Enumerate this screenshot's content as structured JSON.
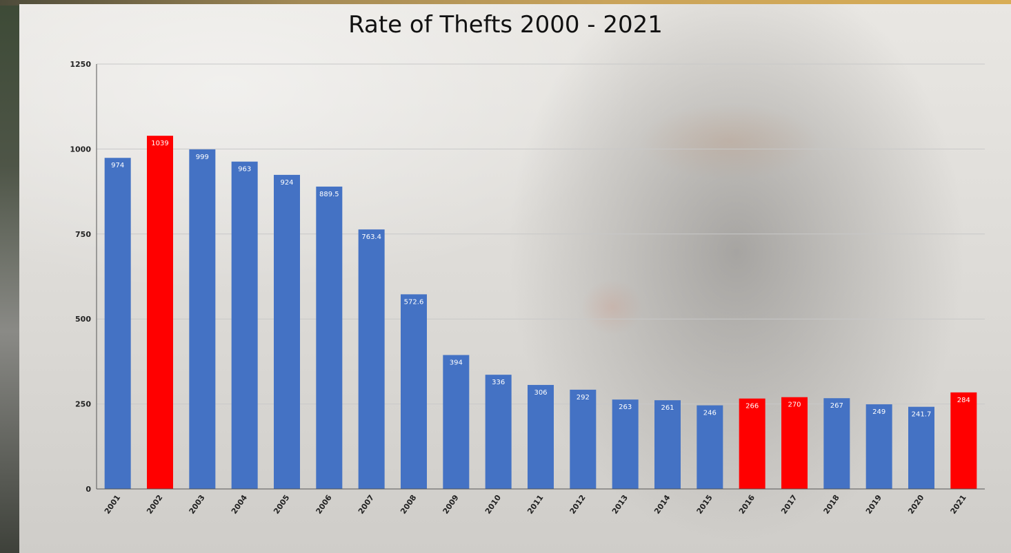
{
  "chart_data": {
    "type": "bar",
    "title": "Rate of Thefts 2000 - 2021",
    "xlabel": "",
    "ylabel": "",
    "ylim": [
      0,
      1250
    ],
    "yticks": [
      "0",
      "250",
      "500",
      "750",
      "1000",
      "1250"
    ],
    "grid": true,
    "categories": [
      "2001",
      "2002",
      "2003",
      "2004",
      "2005",
      "2006",
      "2007",
      "2008",
      "2009",
      "2010",
      "2011",
      "2012",
      "2013",
      "2014",
      "2015",
      "2016",
      "2017",
      "2018",
      "2019",
      "2020",
      "2021"
    ],
    "values": [
      974,
      1039,
      999,
      963,
      924,
      889.5,
      763.4,
      572.6,
      394,
      336,
      306,
      292,
      263,
      261,
      246,
      266,
      270,
      267,
      249,
      241.7,
      284
    ],
    "value_labels": [
      "974",
      "1039",
      "999",
      "963",
      "924",
      "889.5",
      "763.4",
      "572.6",
      "394",
      "336",
      "306",
      "292",
      "263",
      "261",
      "246",
      "266",
      "270",
      "267",
      "249",
      "241.7",
      "284"
    ],
    "highlighted": [
      "2002",
      "2016",
      "2017",
      "2021"
    ],
    "colors": {
      "bar": "#4472c4",
      "highlight": "#ff0000",
      "grid": "#c8c8c8",
      "axis": "#555555"
    }
  }
}
